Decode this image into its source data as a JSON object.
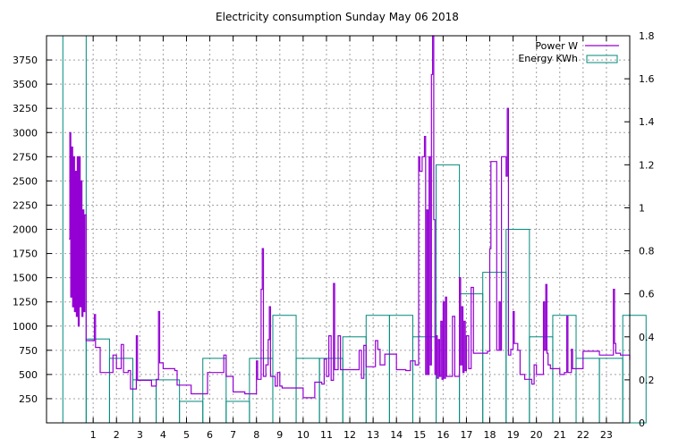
{
  "chart_data": {
    "type": "line",
    "title": "Electricity consumption Sunday May 06 2018",
    "legend_position": "top-right",
    "grid": true,
    "x_range": [
      -1,
      24
    ],
    "y_range": [
      0,
      4000
    ],
    "y2_range": [
      0,
      1.8
    ],
    "x_ticks": [
      1,
      2,
      3,
      4,
      5,
      6,
      7,
      8,
      9,
      10,
      11,
      12,
      13,
      14,
      15,
      16,
      17,
      18,
      19,
      20,
      21,
      22,
      23
    ],
    "y_ticks": [
      250,
      500,
      750,
      1000,
      1250,
      1500,
      1750,
      2000,
      2250,
      2500,
      2750,
      3000,
      3250,
      3500,
      3750
    ],
    "y2_ticks": [
      "0",
      "0.2",
      "0.4",
      "0.6",
      "0.8",
      "1",
      "1.2",
      "1.4",
      "1.6",
      "1.8"
    ],
    "y2_tick_values": [
      0,
      0.2,
      0.4,
      0.6,
      0.8,
      1,
      1.2,
      1.4,
      1.6,
      1.8
    ],
    "series": [
      {
        "name": "Power W",
        "color": "#9400d3",
        "kind": "line",
        "points": [
          [
            -0.04,
            1900
          ],
          [
            0.0,
            3000
          ],
          [
            0.04,
            1300
          ],
          [
            0.08,
            2850
          ],
          [
            0.12,
            1200
          ],
          [
            0.16,
            2750
          ],
          [
            0.2,
            1150
          ],
          [
            0.24,
            2600
          ],
          [
            0.28,
            1100
          ],
          [
            0.32,
            2750
          ],
          [
            0.36,
            1000
          ],
          [
            0.4,
            2750
          ],
          [
            0.44,
            1200
          ],
          [
            0.48,
            2500
          ],
          [
            0.52,
            1100
          ],
          [
            0.56,
            2200
          ],
          [
            0.6,
            1150
          ],
          [
            0.64,
            2150
          ],
          [
            0.7,
            850
          ],
          [
            1.0,
            850
          ],
          [
            1.05,
            1120
          ],
          [
            1.1,
            780
          ],
          [
            1.3,
            780
          ],
          [
            1.3,
            520
          ],
          [
            1.8,
            520
          ],
          [
            1.85,
            700
          ],
          [
            2.0,
            560
          ],
          [
            2.2,
            810
          ],
          [
            2.3,
            520
          ],
          [
            2.5,
            540
          ],
          [
            2.6,
            350
          ],
          [
            2.8,
            350
          ],
          [
            2.85,
            900
          ],
          [
            2.9,
            440
          ],
          [
            3.4,
            440
          ],
          [
            3.5,
            380
          ],
          [
            3.7,
            450
          ],
          [
            3.8,
            1150
          ],
          [
            3.85,
            620
          ],
          [
            4.0,
            560
          ],
          [
            4.5,
            540
          ],
          [
            4.6,
            390
          ],
          [
            5.0,
            390
          ],
          [
            5.2,
            300
          ],
          [
            5.5,
            300
          ],
          [
            5.8,
            300
          ],
          [
            5.9,
            520
          ],
          [
            6.5,
            520
          ],
          [
            6.6,
            700
          ],
          [
            6.7,
            480
          ],
          [
            7.0,
            320
          ],
          [
            7.5,
            300
          ],
          [
            7.9,
            300
          ],
          [
            8.0,
            640
          ],
          [
            8.05,
            450
          ],
          [
            8.2,
            1380
          ],
          [
            8.25,
            1800
          ],
          [
            8.3,
            480
          ],
          [
            8.4,
            600
          ],
          [
            8.5,
            860
          ],
          [
            8.55,
            1200
          ],
          [
            8.6,
            480
          ],
          [
            8.8,
            380
          ],
          [
            8.9,
            520
          ],
          [
            9.0,
            380
          ],
          [
            9.1,
            360
          ],
          [
            9.9,
            360
          ],
          [
            10.0,
            260
          ],
          [
            10.4,
            260
          ],
          [
            10.5,
            420
          ],
          [
            10.8,
            400
          ],
          [
            10.9,
            660
          ],
          [
            11.0,
            480
          ],
          [
            11.1,
            900
          ],
          [
            11.2,
            440
          ],
          [
            11.3,
            1440
          ],
          [
            11.35,
            550
          ],
          [
            11.5,
            900
          ],
          [
            11.6,
            550
          ],
          [
            11.8,
            550
          ],
          [
            12.0,
            550
          ],
          [
            12.2,
            550
          ],
          [
            12.4,
            750
          ],
          [
            12.5,
            460
          ],
          [
            12.6,
            800
          ],
          [
            12.7,
            580
          ],
          [
            13.0,
            580
          ],
          [
            13.1,
            850
          ],
          [
            13.2,
            760
          ],
          [
            13.3,
            600
          ],
          [
            13.5,
            710
          ],
          [
            13.7,
            710
          ],
          [
            13.9,
            710
          ],
          [
            14.0,
            550
          ],
          [
            14.4,
            540
          ],
          [
            14.6,
            640
          ],
          [
            14.8,
            600
          ],
          [
            14.9,
            600
          ],
          [
            14.95,
            2750
          ],
          [
            15.0,
            2600
          ],
          [
            15.1,
            2750
          ],
          [
            15.2,
            2960
          ],
          [
            15.25,
            500
          ],
          [
            15.3,
            2200
          ],
          [
            15.35,
            500
          ],
          [
            15.4,
            2750
          ],
          [
            15.45,
            600
          ],
          [
            15.5,
            3600
          ],
          [
            15.55,
            4000
          ],
          [
            15.6,
            2100
          ],
          [
            15.65,
            500
          ],
          [
            15.7,
            900
          ],
          [
            15.75,
            460
          ],
          [
            15.8,
            860
          ],
          [
            15.85,
            480
          ],
          [
            15.9,
            1050
          ],
          [
            15.95,
            450
          ],
          [
            16.0,
            1250
          ],
          [
            16.05,
            460
          ],
          [
            16.1,
            1300
          ],
          [
            16.15,
            480
          ],
          [
            16.3,
            480
          ],
          [
            16.4,
            1100
          ],
          [
            16.5,
            480
          ],
          [
            16.6,
            480
          ],
          [
            16.7,
            1500
          ],
          [
            16.75,
            600
          ],
          [
            16.8,
            1200
          ],
          [
            16.85,
            520
          ],
          [
            16.9,
            1050
          ],
          [
            16.95,
            540
          ],
          [
            17.0,
            900
          ],
          [
            17.1,
            560
          ],
          [
            17.2,
            1400
          ],
          [
            17.3,
            720
          ],
          [
            17.5,
            720
          ],
          [
            17.7,
            720
          ],
          [
            17.9,
            740
          ],
          [
            18.0,
            1800
          ],
          [
            18.05,
            2700
          ],
          [
            18.2,
            2700
          ],
          [
            18.3,
            750
          ],
          [
            18.4,
            1250
          ],
          [
            18.45,
            750
          ],
          [
            18.5,
            2750
          ],
          [
            18.6,
            2750
          ],
          [
            18.7,
            2550
          ],
          [
            18.75,
            3250
          ],
          [
            18.8,
            700
          ],
          [
            18.9,
            760
          ],
          [
            19.0,
            1150
          ],
          [
            19.05,
            820
          ],
          [
            19.2,
            750
          ],
          [
            19.3,
            500
          ],
          [
            19.5,
            450
          ],
          [
            19.7,
            450
          ],
          [
            19.8,
            400
          ],
          [
            19.9,
            600
          ],
          [
            20.0,
            500
          ],
          [
            20.2,
            500
          ],
          [
            20.3,
            1250
          ],
          [
            20.35,
            750
          ],
          [
            20.4,
            1430
          ],
          [
            20.45,
            720
          ],
          [
            20.5,
            600
          ],
          [
            20.6,
            560
          ],
          [
            20.8,
            560
          ],
          [
            21.0,
            500
          ],
          [
            21.2,
            520
          ],
          [
            21.3,
            1100
          ],
          [
            21.35,
            520
          ],
          [
            21.5,
            760
          ],
          [
            21.55,
            560
          ],
          [
            21.8,
            560
          ],
          [
            22.0,
            740
          ],
          [
            22.5,
            740
          ],
          [
            22.7,
            700
          ],
          [
            23.0,
            700
          ],
          [
            23.2,
            700
          ],
          [
            23.3,
            1380
          ],
          [
            23.35,
            820
          ],
          [
            23.4,
            720
          ],
          [
            23.6,
            700
          ],
          [
            24.0,
            650
          ]
        ]
      },
      {
        "name": "Energy KWh",
        "color": "#00897b",
        "kind": "steps",
        "values": [
          1.8,
          0.39,
          0.3,
          0.2,
          0.2,
          0.1,
          0.3,
          0.1,
          0.3,
          0.5,
          0.3,
          0.3,
          0.4,
          0.5,
          0.5,
          0.4,
          1.2,
          0.6,
          0.7,
          0.9,
          0.4,
          0.5,
          0.3,
          0.3,
          0.5
        ]
      }
    ]
  }
}
